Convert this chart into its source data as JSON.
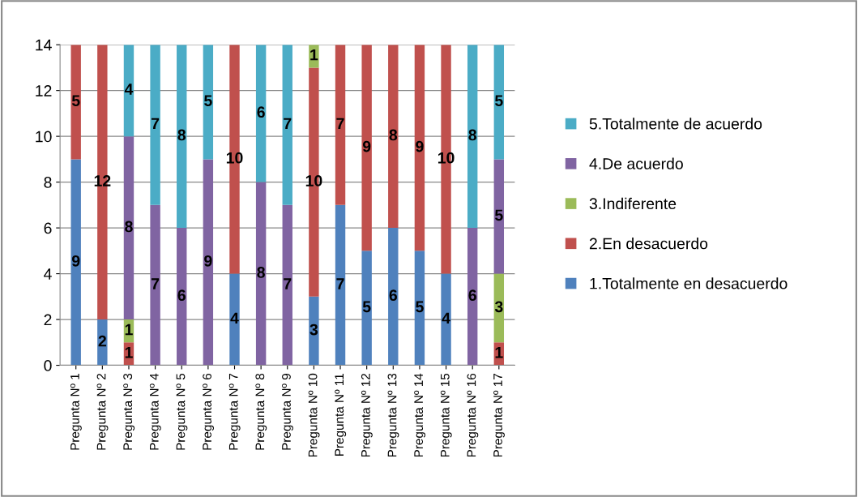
{
  "chart_data": {
    "type": "bar",
    "stacked": true,
    "categories": [
      "Pregunta Nº 1",
      "Pregunta Nº 2",
      "Pregunta Nº 3",
      "Pregunta Nº 4",
      "Pregunta Nº 5",
      "Pregunta Nº 6",
      "Pregunta Nº 7",
      "Pregunta Nº 8",
      "Pregunta Nº 9",
      "Pregunta Nº 10",
      "Pregunta Nº 11",
      "Pregunta Nº 12",
      "Pregunta Nº 13",
      "Pregunta Nº 14",
      "Pregunta Nº 15",
      "Pregunta Nº 16",
      "Pregunta Nº 17"
    ],
    "series": [
      {
        "name": "1.Totalmente en desacuerdo",
        "color": "#4f81bd",
        "values": [
          9,
          2,
          null,
          null,
          null,
          null,
          4,
          null,
          null,
          3,
          7,
          5,
          6,
          5,
          4,
          null,
          null
        ]
      },
      {
        "name": "2.En desacuerdo",
        "color": "#c0504d",
        "values": [
          5,
          12,
          1,
          null,
          null,
          null,
          10,
          null,
          null,
          10,
          7,
          9,
          8,
          9,
          10,
          null,
          1
        ]
      },
      {
        "name": "3.Indiferente",
        "color": "#9bbb59",
        "values": [
          null,
          null,
          1,
          null,
          null,
          null,
          null,
          null,
          null,
          1,
          null,
          null,
          null,
          null,
          null,
          null,
          3
        ]
      },
      {
        "name": "4.De acuerdo",
        "color": "#8064a2",
        "values": [
          null,
          null,
          8,
          7,
          6,
          9,
          null,
          8,
          7,
          null,
          null,
          null,
          null,
          null,
          null,
          6,
          5
        ]
      },
      {
        "name": "5.Totalmente de acuerdo",
        "color": "#4bacc6",
        "values": [
          null,
          null,
          4,
          7,
          8,
          5,
          null,
          6,
          7,
          null,
          null,
          null,
          null,
          null,
          null,
          8,
          5
        ]
      }
    ],
    "ylim": [
      0,
      14
    ],
    "yticks": [
      0,
      2,
      4,
      6,
      8,
      10,
      12,
      14
    ],
    "grid": "y",
    "legend": "right",
    "data_labels": true
  }
}
